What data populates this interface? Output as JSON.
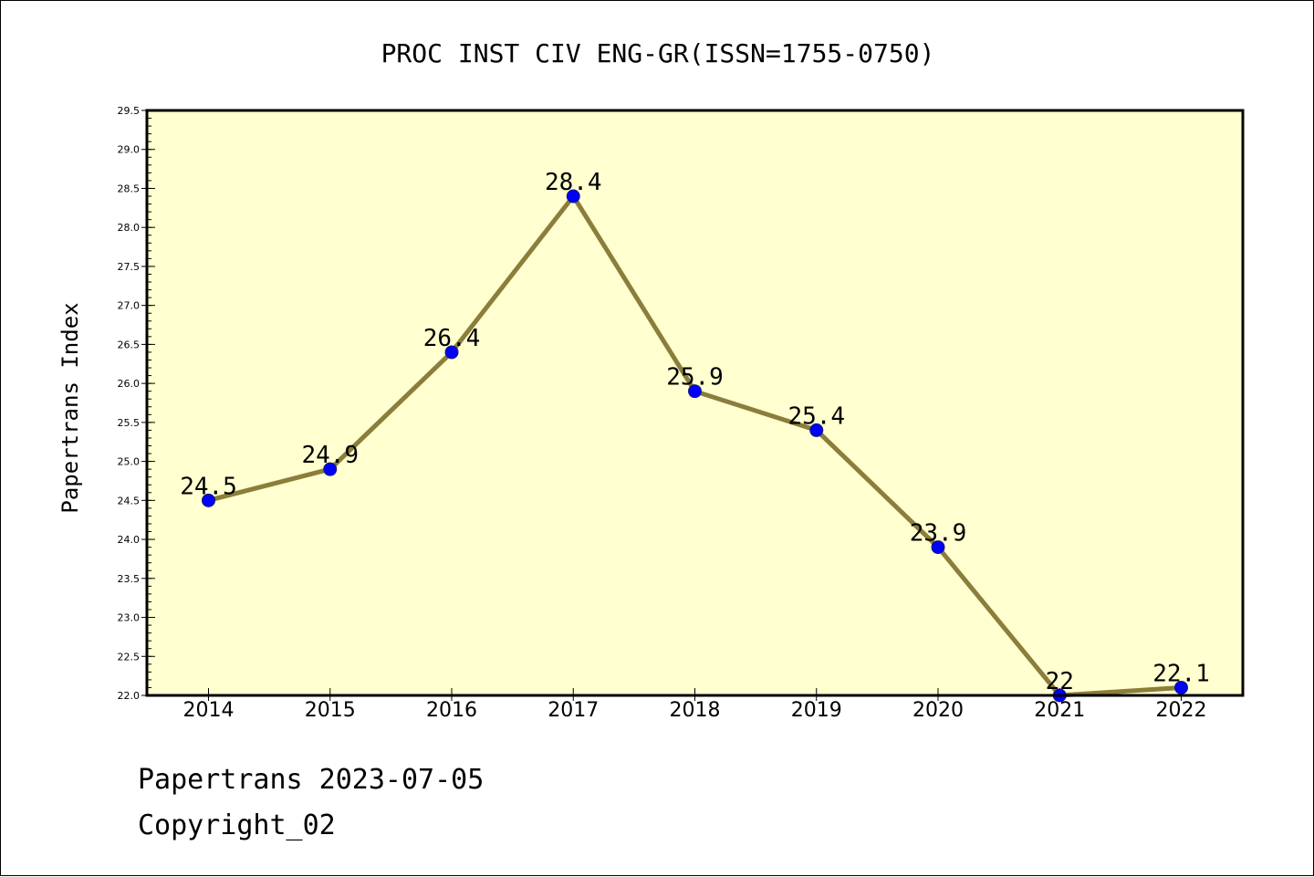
{
  "chart_data": {
    "type": "line",
    "title": "PROC INST CIV ENG-GR(ISSN=1755-0750)",
    "ylabel": "Papertrans Index",
    "xlabel": "",
    "categories": [
      "2014",
      "2015",
      "2016",
      "2017",
      "2018",
      "2019",
      "2020",
      "2021",
      "2022"
    ],
    "values": [
      24.5,
      24.9,
      26.4,
      28.4,
      25.9,
      25.4,
      23.9,
      22,
      22.1
    ],
    "data_labels": [
      "24.5",
      "24.9",
      "26.4",
      "28.4",
      "25.9",
      "25.4",
      "23.9",
      "22",
      "22.1"
    ],
    "ylim": [
      22.0,
      29.5
    ],
    "yticks": [
      "22.0",
      "22.5",
      "23.0",
      "23.5",
      "24.0",
      "24.5",
      "25.0",
      "25.5",
      "26.0",
      "26.5",
      "27.0",
      "27.5",
      "28.0",
      "28.5",
      "29.0",
      "29.5"
    ],
    "grid": false,
    "legend": "none",
    "colors": {
      "plot_background": "#ffffd0",
      "line": "#8b7d3a",
      "marker": "#0000ff",
      "frame": "#000000"
    }
  },
  "footer": {
    "date_line": "Papertrans 2023-07-05",
    "copyright_line": "Copyright_02"
  }
}
